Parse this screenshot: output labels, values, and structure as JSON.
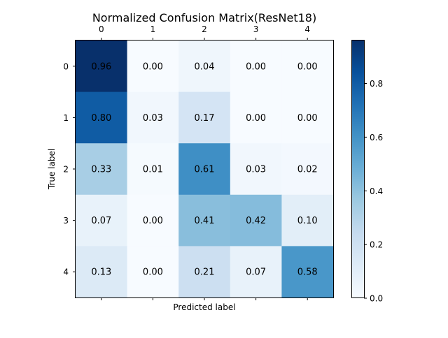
{
  "chart_data": {
    "type": "heatmap",
    "title": "Normalized Confusion Matrix(ResNet18)",
    "xlabel": "Predicted label",
    "ylabel": "True label",
    "x_categories": [
      "0",
      "1",
      "2",
      "3",
      "4"
    ],
    "y_categories": [
      "0",
      "1",
      "2",
      "3",
      "4"
    ],
    "x_tick_position": "top",
    "values": [
      [
        0.96,
        0.0,
        0.04,
        0.0,
        0.0
      ],
      [
        0.8,
        0.03,
        0.17,
        0.0,
        0.0
      ],
      [
        0.33,
        0.01,
        0.61,
        0.03,
        0.02
      ],
      [
        0.07,
        0.0,
        0.41,
        0.42,
        0.1
      ],
      [
        0.13,
        0.0,
        0.21,
        0.07,
        0.58
      ]
    ],
    "cell_labels": [
      [
        "0.96",
        "0.00",
        "0.04",
        "0.00",
        "0.00"
      ],
      [
        "0.80",
        "0.03",
        "0.17",
        "0.00",
        "0.00"
      ],
      [
        "0.33",
        "0.01",
        "0.61",
        "0.03",
        "0.02"
      ],
      [
        "0.07",
        "0.00",
        "0.41",
        "0.42",
        "0.10"
      ],
      [
        "0.13",
        "0.00",
        "0.21",
        "0.07",
        "0.58"
      ]
    ],
    "colormap": "Blues",
    "colormap_stops": [
      "#f7fbff",
      "#deebf7",
      "#c6dbef",
      "#9ecae1",
      "#6baed6",
      "#4292c6",
      "#2171b5",
      "#08519c",
      "#08306b"
    ],
    "color_range": [
      0,
      0.96
    ],
    "colorbar": {
      "ticks": [
        0.0,
        0.2,
        0.4,
        0.6,
        0.8
      ],
      "tick_labels": [
        "0.0",
        "0.2",
        "0.4",
        "0.6",
        "0.8"
      ]
    },
    "grid": false,
    "legend": "none"
  }
}
